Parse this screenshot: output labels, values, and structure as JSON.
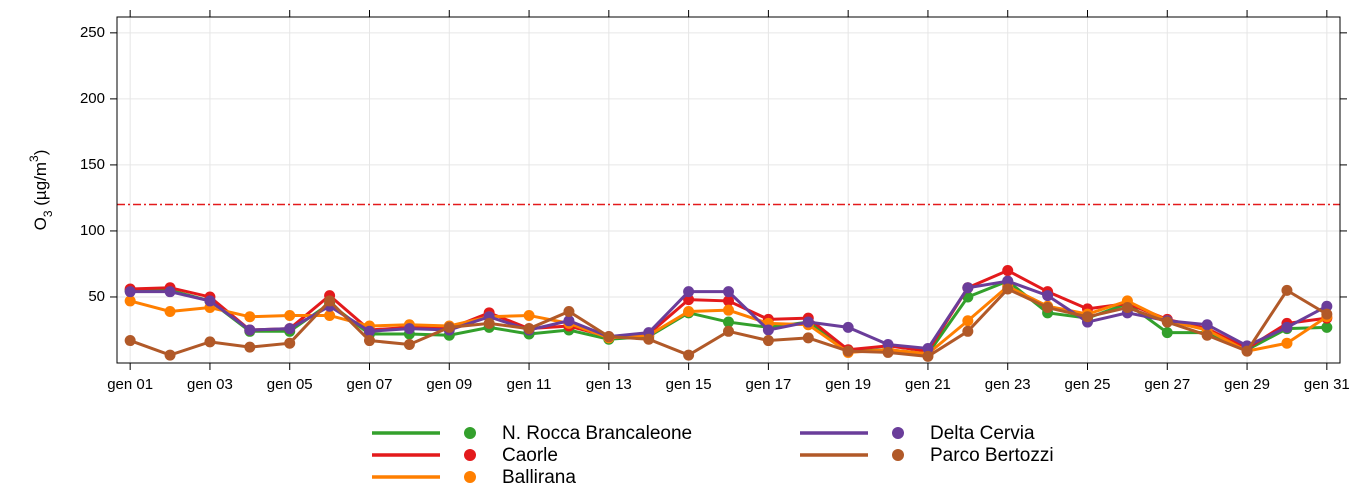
{
  "chart_data": {
    "type": "line",
    "ylabel": [
      "O",
      "3",
      " (µg/m",
      "3",
      ")"
    ],
    "categories": [
      "gen 01",
      null,
      "gen 03",
      null,
      "gen 05",
      null,
      "gen 07",
      null,
      "gen 09",
      null,
      "gen 11",
      null,
      "gen 13",
      null,
      "gen 15",
      null,
      "gen 17",
      null,
      "gen 19",
      null,
      "gen 21",
      null,
      "gen 23",
      null,
      "gen 25",
      null,
      "gen 27",
      null,
      "gen 29",
      null,
      "gen 31"
    ],
    "series": [
      {
        "name": "N. Rocca Brancaleone",
        "color": "#33a02c",
        "values": [
          55,
          55,
          47,
          24,
          24,
          45,
          22,
          22,
          21,
          27,
          22,
          25,
          18,
          20,
          38,
          31,
          27,
          31,
          9,
          10,
          7,
          50,
          62,
          38,
          34,
          45,
          23,
          23,
          10,
          26,
          27
        ]
      },
      {
        "name": "Caorle",
        "color": "#e31a1c",
        "values": [
          56,
          57,
          50,
          25,
          26,
          51,
          25,
          27,
          26,
          38,
          26,
          28,
          20,
          22,
          48,
          47,
          33,
          34,
          10,
          13,
          9,
          57,
          70,
          54,
          41,
          45,
          33,
          26,
          11,
          30,
          34
        ]
      },
      {
        "name": "Ballirana",
        "color": "#ff7f00",
        "values": [
          47,
          39,
          42,
          35,
          36,
          36,
          28,
          29,
          28,
          35,
          36,
          30,
          19,
          21,
          39,
          40,
          30,
          29,
          8,
          10,
          7,
          32,
          58,
          43,
          37,
          47,
          32,
          25,
          9,
          15,
          35
        ]
      },
      {
        "name": "Delta Cervia",
        "color": "#6a3d9a",
        "values": [
          54,
          54,
          47,
          25,
          26,
          43,
          24,
          26,
          25,
          35,
          25,
          32,
          20,
          23,
          54,
          54,
          25,
          31,
          27,
          14,
          11,
          57,
          62,
          51,
          31,
          38,
          32,
          29,
          13,
          27,
          43
        ]
      },
      {
        "name": "Parco Bertozzi",
        "color": "#b15928",
        "values": [
          17,
          6,
          16,
          12,
          15,
          47,
          17,
          14,
          27,
          30,
          26,
          39,
          20,
          18,
          6,
          24,
          17,
          19,
          9,
          8,
          5,
          24,
          56,
          42,
          35,
          42,
          31,
          21,
          9,
          55,
          37
        ]
      }
    ],
    "ylim": [
      0,
      262
    ],
    "yticks": [
      50,
      100,
      150,
      200,
      250
    ],
    "grid": true,
    "hline": {
      "value": 120,
      "color": "#e31a1c"
    },
    "legend": "bottom"
  }
}
